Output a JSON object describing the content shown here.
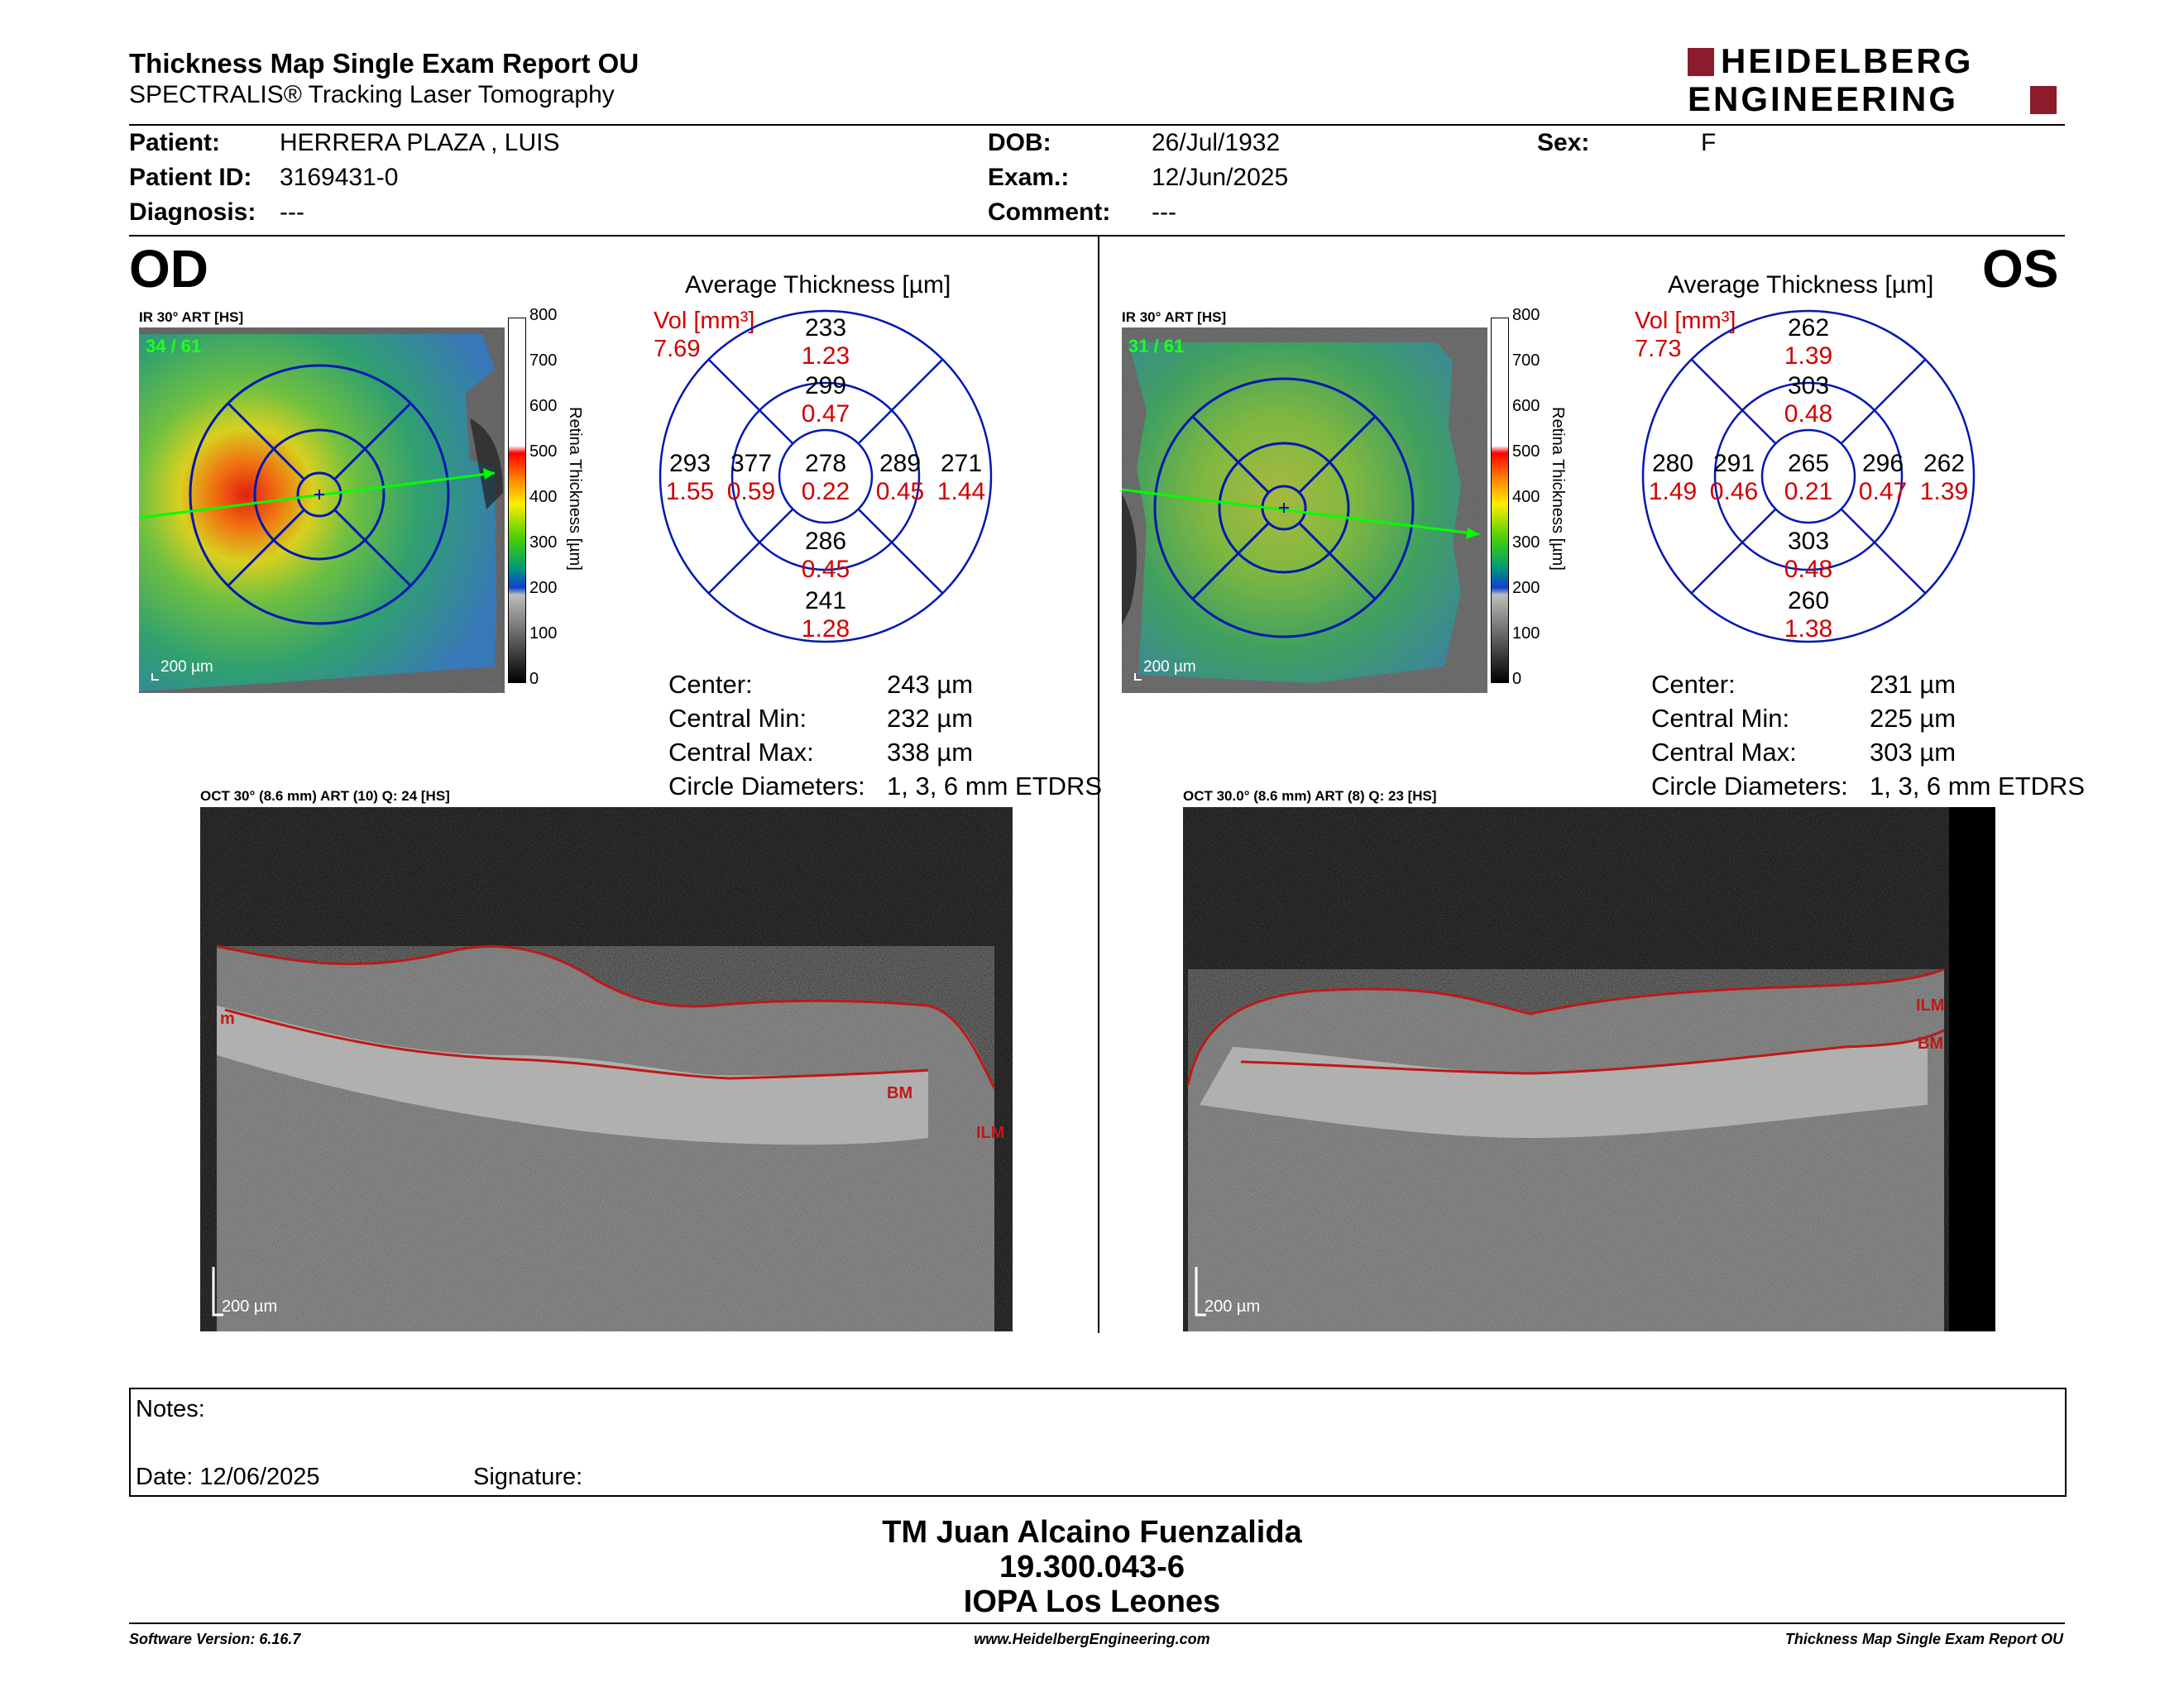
{
  "report": {
    "title": "Thickness Map Single Exam Report OU",
    "subtitle": "SPECTRALIS® Tracking Laser Tomography",
    "logo_line1": "HEIDELBERG",
    "logo_line2": "ENGINEERING"
  },
  "patient": {
    "patient_label": "Patient:",
    "patient_value": "HERRERA PLAZA , LUIS",
    "id_label": "Patient ID:",
    "id_value": "3169431-0",
    "diagnosis_label": "Diagnosis:",
    "diagnosis_value": "---",
    "dob_label": "DOB:",
    "dob_value": "26/Jul/1932",
    "exam_label": "Exam.:",
    "exam_value": "12/Jun/2025",
    "comment_label": "Comment:",
    "comment_value": "---",
    "sex_label": "Sex:",
    "sex_value": "F"
  },
  "colorbar": {
    "ticks": [
      "800",
      "700",
      "600",
      "500",
      "400",
      "300",
      "200",
      "100",
      "0"
    ],
    "title": "Retina  Thickness [µm]"
  },
  "od": {
    "eye": "OD",
    "ir_caption": "IR 30° ART [HS]",
    "frame_count": "34 / 61",
    "scale_label": "200 µm",
    "avg_title": "Average Thickness [µm]",
    "vol_label": "Vol [mm³]",
    "vol_total": "7.69",
    "sectors": {
      "outer_sup": {
        "t": "233",
        "v": "1.23"
      },
      "inner_sup": {
        "t": "299",
        "v": "0.47"
      },
      "outer_left": {
        "t": "293",
        "v": "1.55"
      },
      "inner_left": {
        "t": "377",
        "v": "0.59"
      },
      "center": {
        "t": "278",
        "v": "0.22"
      },
      "inner_right": {
        "t": "289",
        "v": "0.45"
      },
      "outer_right": {
        "t": "271",
        "v": "1.44"
      },
      "inner_inf": {
        "t": "286",
        "v": "0.45"
      },
      "outer_inf": {
        "t": "241",
        "v": "1.28"
      }
    },
    "stats": [
      {
        "label": "Center:",
        "value": "243 µm"
      },
      {
        "label": "Central Min:",
        "value": "232 µm"
      },
      {
        "label": "Central Max:",
        "value": "338 µm"
      },
      {
        "label": "Circle Diameters:",
        "value": "1, 3, 6 mm ETDRS"
      }
    ],
    "oct_caption": "OCT 30° (8.6 mm) ART (10) Q: 24 [HS]",
    "oct_scale": "200 µm",
    "tags": {
      "ilm_left": "m",
      "bm": "BM",
      "ilm": "ILM"
    }
  },
  "os": {
    "eye": "OS",
    "ir_caption": "IR 30° ART [HS]",
    "frame_count": "31 / 61",
    "scale_label": "200 µm",
    "avg_title": "Average Thickness [µm]",
    "vol_label": "Vol [mm³]",
    "vol_total": "7.73",
    "sectors": {
      "outer_sup": {
        "t": "262",
        "v": "1.39"
      },
      "inner_sup": {
        "t": "303",
        "v": "0.48"
      },
      "outer_left": {
        "t": "280",
        "v": "1.49"
      },
      "inner_left": {
        "t": "291",
        "v": "0.46"
      },
      "center": {
        "t": "265",
        "v": "0.21"
      },
      "inner_right": {
        "t": "296",
        "v": "0.47"
      },
      "outer_right": {
        "t": "262",
        "v": "1.39"
      },
      "inner_inf": {
        "t": "303",
        "v": "0.48"
      },
      "outer_inf": {
        "t": "260",
        "v": "1.38"
      }
    },
    "stats": [
      {
        "label": "Center:",
        "value": "231 µm"
      },
      {
        "label": "Central Min:",
        "value": "225 µm"
      },
      {
        "label": "Central Max:",
        "value": "303 µm"
      },
      {
        "label": "Circle Diameters:",
        "value": "1, 3, 6 mm ETDRS"
      }
    ],
    "oct_caption": "OCT 30.0° (8.6 mm) ART (8) Q: 23 [HS]",
    "oct_scale": "200 µm",
    "tags": {
      "ilm": "ILM",
      "bm": "BM"
    }
  },
  "notes": {
    "notes_label": "Notes:",
    "date_label": "Date: 12/06/2025",
    "signature_label": "Signature:"
  },
  "signer": {
    "line1": "TM Juan Alcaino Fuenzalida",
    "line2": "19.300.043-6",
    "line3": "IOPA Los Leones"
  },
  "footer": {
    "software": "Software Version: 6.16.7",
    "website": "www.HeidelbergEngineering.com",
    "report_name": "Thickness Map Single Exam Report OU"
  }
}
